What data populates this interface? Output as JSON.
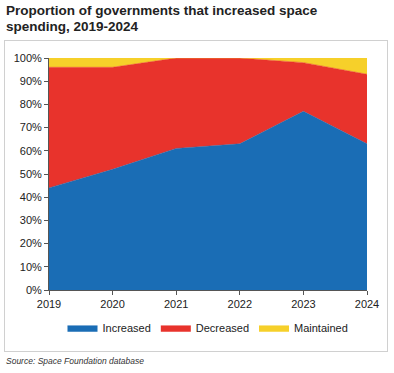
{
  "chart_data": {
    "type": "area",
    "title": "Proportion of governments that increased space spending, 2019-2024",
    "source": "Source: Space Foundation database",
    "x": [
      2019,
      2020,
      2021,
      2022,
      2023,
      2024
    ],
    "series": [
      {
        "name": "Increased",
        "color": "#1a6db5",
        "values": [
          44,
          52,
          61,
          63,
          77,
          63
        ]
      },
      {
        "name": "Decreased",
        "color": "#e8332c",
        "values": [
          52,
          44,
          39,
          37,
          21,
          30
        ]
      },
      {
        "name": "Maintained",
        "color": "#f6d02a",
        "values": [
          4,
          4,
          0,
          0,
          2,
          7
        ]
      }
    ],
    "stacked": true,
    "xlim": [
      2019,
      2024
    ],
    "xticks": [
      2019,
      2020,
      2021,
      2022,
      2023,
      2024
    ],
    "ylim": [
      0,
      100
    ],
    "yticks": [
      {
        "value": 0,
        "label": "0%"
      },
      {
        "value": 10,
        "label": "10%"
      },
      {
        "value": 20,
        "label": "20%"
      },
      {
        "value": 30,
        "label": "30%"
      },
      {
        "value": 40,
        "label": "40%"
      },
      {
        "value": 50,
        "label": "50%"
      },
      {
        "value": 60,
        "label": "60%"
      },
      {
        "value": 70,
        "label": "70%"
      },
      {
        "value": 80,
        "label": "80%"
      },
      {
        "value": 90,
        "label": "90%"
      },
      {
        "value": 100,
        "label": "100%"
      }
    ],
    "grid": false,
    "legend": "bottom"
  }
}
